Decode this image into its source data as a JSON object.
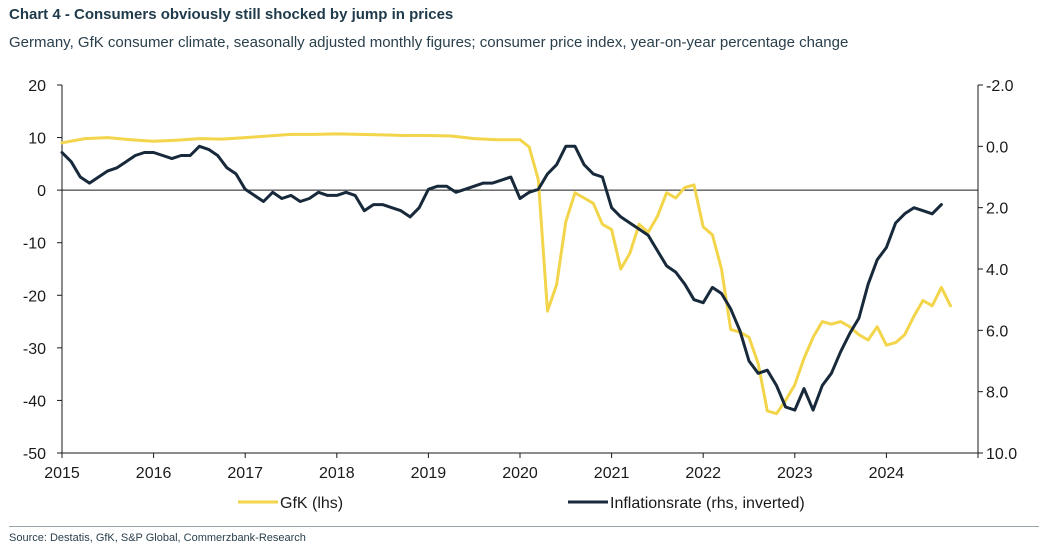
{
  "header": {
    "title": "Chart 4 - Consumers obviously still shocked by jump in prices",
    "subtitle": "Germany, GfK consumer climate, seasonally adjusted monthly figures; consumer price index, year-on-year percentage change"
  },
  "footer": {
    "source": "Source: Destatis, GfK, S&P Global, Commerzbank-Research"
  },
  "colors": {
    "gfk": "#f2d54a",
    "inflation": "#17293a",
    "axis": "#1a1a1a"
  },
  "chart_data": {
    "type": "line",
    "title": "Chart 4 - Consumers obviously still shocked by jump in prices",
    "x_ticks": [
      "2015",
      "2016",
      "2017",
      "2018",
      "2019",
      "2020",
      "2021",
      "2022",
      "2023",
      "2024"
    ],
    "x_range": [
      2015.0,
      2025.0
    ],
    "left_axis": {
      "ylim": [
        -50,
        20
      ],
      "ticks": [
        20,
        10,
        0,
        -10,
        -20,
        -30,
        -40,
        -50
      ],
      "tick_labels": [
        "20",
        "10",
        "0",
        "-10",
        "-20",
        "-30",
        "-40",
        "-50"
      ]
    },
    "right_axis": {
      "inverted": true,
      "ylim": [
        -2.0,
        10.0
      ],
      "ticks": [
        -2.0,
        0.0,
        2.0,
        4.0,
        6.0,
        8.0,
        10.0
      ],
      "tick_labels": [
        "-2.0",
        "0.0",
        "2.0",
        "4.0",
        "6.0",
        "8.0",
        "10.0"
      ]
    },
    "legend": {
      "position": "bottom",
      "entries": [
        "GfK (lhs)",
        "Inflationsrate (rhs, inverted)"
      ]
    },
    "series": [
      {
        "name": "GfK (lhs)",
        "axis": "left",
        "x": [
          2015.0,
          2015.25,
          2015.5,
          2015.75,
          2016.0,
          2016.25,
          2016.5,
          2016.75,
          2017.0,
          2017.25,
          2017.5,
          2017.75,
          2018.0,
          2018.25,
          2018.5,
          2018.75,
          2019.0,
          2019.25,
          2019.5,
          2019.75,
          2020.0,
          2020.1,
          2020.2,
          2020.3,
          2020.4,
          2020.5,
          2020.6,
          2020.7,
          2020.8,
          2020.9,
          2021.0,
          2021.1,
          2021.2,
          2021.3,
          2021.4,
          2021.5,
          2021.6,
          2021.7,
          2021.8,
          2021.9,
          2022.0,
          2022.1,
          2022.2,
          2022.3,
          2022.4,
          2022.5,
          2022.6,
          2022.7,
          2022.8,
          2022.9,
          2023.0,
          2023.1,
          2023.2,
          2023.3,
          2023.4,
          2023.5,
          2023.6,
          2023.7,
          2023.8,
          2023.9,
          2024.0,
          2024.1,
          2024.2,
          2024.3,
          2024.4,
          2024.5,
          2024.6,
          2024.7
        ],
        "y": [
          9.0,
          9.8,
          10.0,
          9.6,
          9.3,
          9.5,
          9.8,
          9.7,
          10.0,
          10.3,
          10.6,
          10.6,
          10.7,
          10.6,
          10.5,
          10.4,
          10.4,
          10.3,
          9.8,
          9.6,
          9.6,
          8.2,
          2.0,
          -23.0,
          -18.0,
          -6.0,
          -0.5,
          -1.5,
          -2.5,
          -6.5,
          -7.5,
          -15.0,
          -12.0,
          -6.5,
          -8.0,
          -5.0,
          -0.5,
          -1.5,
          0.5,
          1.0,
          -7.0,
          -8.5,
          -15.0,
          -26.5,
          -27.0,
          -28.0,
          -33.0,
          -42.0,
          -42.5,
          -40.0,
          -37.0,
          -32.0,
          -28.0,
          -25.0,
          -25.5,
          -25.0,
          -26.0,
          -27.5,
          -28.5,
          -26.0,
          -29.5,
          -29.0,
          -27.5,
          -24.0,
          -21.0,
          -22.0,
          -18.5,
          -22.0
        ]
      },
      {
        "name": "Inflationsrate (rhs, inverted)",
        "axis": "right",
        "x": [
          2015.0,
          2015.1,
          2015.2,
          2015.3,
          2015.4,
          2015.5,
          2015.6,
          2015.7,
          2015.8,
          2015.9,
          2016.0,
          2016.1,
          2016.2,
          2016.3,
          2016.4,
          2016.5,
          2016.6,
          2016.7,
          2016.8,
          2016.9,
          2017.0,
          2017.1,
          2017.2,
          2017.3,
          2017.4,
          2017.5,
          2017.6,
          2017.7,
          2017.8,
          2017.9,
          2018.0,
          2018.1,
          2018.2,
          2018.3,
          2018.4,
          2018.5,
          2018.6,
          2018.7,
          2018.8,
          2018.9,
          2019.0,
          2019.1,
          2019.2,
          2019.3,
          2019.4,
          2019.5,
          2019.6,
          2019.7,
          2019.8,
          2019.9,
          2020.0,
          2020.1,
          2020.2,
          2020.3,
          2020.4,
          2020.5,
          2020.6,
          2020.7,
          2020.8,
          2020.9,
          2021.0,
          2021.1,
          2021.2,
          2021.3,
          2021.4,
          2021.5,
          2021.6,
          2021.7,
          2021.8,
          2021.9,
          2022.0,
          2022.1,
          2022.2,
          2022.3,
          2022.4,
          2022.5,
          2022.6,
          2022.7,
          2022.8,
          2022.9,
          2023.0,
          2023.1,
          2023.2,
          2023.3,
          2023.4,
          2023.5,
          2023.6,
          2023.7,
          2023.8,
          2023.9,
          2024.0,
          2024.1,
          2024.2,
          2024.3,
          2024.4,
          2024.5,
          2024.6
        ],
        "y": [
          0.2,
          0.5,
          1.0,
          1.2,
          1.0,
          0.8,
          0.7,
          0.5,
          0.3,
          0.2,
          0.2,
          0.3,
          0.4,
          0.3,
          0.3,
          0.0,
          0.1,
          0.3,
          0.7,
          0.9,
          1.4,
          1.6,
          1.8,
          1.5,
          1.7,
          1.6,
          1.8,
          1.7,
          1.5,
          1.6,
          1.6,
          1.5,
          1.6,
          2.1,
          1.9,
          1.9,
          2.0,
          2.1,
          2.3,
          2.0,
          1.4,
          1.3,
          1.3,
          1.5,
          1.4,
          1.3,
          1.2,
          1.2,
          1.1,
          1.0,
          1.7,
          1.5,
          1.4,
          0.9,
          0.6,
          0.0,
          0.0,
          0.6,
          0.9,
          1.0,
          2.0,
          2.3,
          2.5,
          2.7,
          2.9,
          3.4,
          3.9,
          4.1,
          4.5,
          5.0,
          5.1,
          4.6,
          4.8,
          5.3,
          6.0,
          7.0,
          7.4,
          7.3,
          7.8,
          8.5,
          8.6,
          7.9,
          8.6,
          7.8,
          7.4,
          6.7,
          6.1,
          5.6,
          4.5,
          3.7,
          3.3,
          2.5,
          2.2,
          2.0,
          2.1,
          2.2,
          1.9
        ]
      }
    ]
  }
}
